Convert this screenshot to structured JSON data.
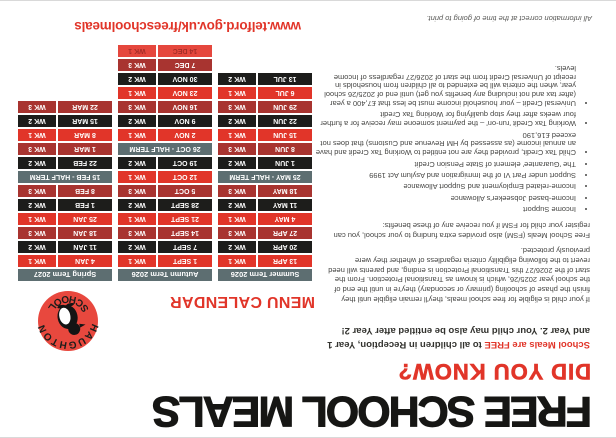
{
  "header": {
    "title": "FREE SCHOOL MEALS",
    "subtitle": "DID YOU KNOW?"
  },
  "intro": {
    "highlight": "School Meals are FREE",
    "rest": "to all children in Reception, Year 1 and Year 2. Your child may also be entitled after Year 2!"
  },
  "paragraphs": [
    "If your child is eligible for free school meals, they'll remain eligible until they finish the phase of schooling (primary or secondary) they're in until the end of the school year 2025/26, which is known as Transitional Protection. From the start of the 2026/27 this Transitional Protection is ending, and parents will need revert to the following eligibility criteria regardless of whether they were previously protected.",
    "Free School Meals (FSM) also provides extra funding to your school, you can register your child for FSM if you receive any of these benefits:"
  ],
  "benefits": [
    "Income Support",
    "Income-based Jobseeker's Allowance",
    "Income-related Employment and Support Allowance",
    "Support under Part VI of the Immigration and Asylum Act 1999",
    "The 'Guarantee' element of State Pension Credit",
    "Child Tax Credit, provided they are not entitled to Working Tax Credit and have an annual income (as assessed by HM Revenue and Customs) that does not exceed £16,190",
    "Working Tax Credit 'run-on' – the payment someone may receive for a further four weeks after they stop qualifying for Working Tax Credit",
    "Universal Credit – your household income must be less that £7,400 a year (after tax and not including any benefits you get) until end of 2025/26 school year, when the criteria will be extended to all children from households in receipt of Universal Credit from the start of 2026/27 regardless of Income levels."
  ],
  "footnote": "All information correct at the time of going to print.",
  "menu_calendar": {
    "title": "MENU CALENDAR",
    "url": "www.telford.gov.uk/freeschoolmeals",
    "logo": {
      "arc_top": "HAUGHTON",
      "arc_bottom": "SCHOOL",
      "icon": "penguin-icon"
    },
    "terms": [
      {
        "name": "Summer Term 2026",
        "rows": [
          {
            "date": "13 APR",
            "week": "WK 1",
            "style": "wk1"
          },
          {
            "date": "20 APR",
            "week": "WK 2",
            "style": "wk2"
          },
          {
            "date": "27 APR",
            "week": "WK 3",
            "style": "wk3"
          },
          {
            "date": "4 MAY",
            "week": "WK 1",
            "style": "wk1"
          },
          {
            "date": "11 MAY",
            "week": "WK 2",
            "style": "wk2"
          },
          {
            "date": "18 MAY",
            "week": "WK 3",
            "style": "wk3"
          },
          {
            "date": "25 MAY - HALF TERM",
            "week": "",
            "style": "half"
          },
          {
            "date": "1 JUN",
            "week": "WK 2",
            "style": "wk2"
          },
          {
            "date": "8 JUN",
            "week": "WK 3",
            "style": "wk3"
          },
          {
            "date": "15 JUN",
            "week": "WK 1",
            "style": "wk1"
          },
          {
            "date": "22 JUN",
            "week": "WK 2",
            "style": "wk2"
          },
          {
            "date": "29 JUN",
            "week": "WK 3",
            "style": "wk3"
          },
          {
            "date": "6 JUL",
            "week": "WK 1",
            "style": "wk1"
          },
          {
            "date": "13 JUL",
            "week": "WK 2",
            "style": "wk2"
          }
        ]
      },
      {
        "name": "Autumn Term 2026",
        "rows": [
          {
            "date": "1 SEPT",
            "week": "WK 1",
            "style": "wk1"
          },
          {
            "date": "7 SEPT",
            "week": "WK 2",
            "style": "wk2"
          },
          {
            "date": "14 SEPT",
            "week": "WK 3",
            "style": "wk3"
          },
          {
            "date": "21 SEPT",
            "week": "WK 1",
            "style": "wk1"
          },
          {
            "date": "28 SEPT",
            "week": "WK 2",
            "style": "wk2"
          },
          {
            "date": "5 OCT",
            "week": "WK 3",
            "style": "wk3"
          },
          {
            "date": "12 OCT",
            "week": "WK 1",
            "style": "wk1"
          },
          {
            "date": "19 OCT",
            "week": "WK 2",
            "style": "wk2"
          },
          {
            "date": "26 OCT - HALF TERM",
            "week": "",
            "style": "half"
          },
          {
            "date": "2 NOV",
            "week": "WK 1",
            "style": "wk1"
          },
          {
            "date": "9 NOV",
            "week": "WK 2",
            "style": "wk2"
          },
          {
            "date": "16 NOV",
            "week": "WK 3",
            "style": "wk3"
          },
          {
            "date": "23 NOV",
            "week": "WK 1",
            "style": "wk1"
          },
          {
            "date": "30 NOV",
            "week": "WK 2",
            "style": "wk2"
          },
          {
            "date": "7 DEC",
            "week": "WK 3",
            "style": "wk3"
          },
          {
            "date": "14 DEC",
            "week": "WK 1",
            "style": "wk1-muted"
          }
        ]
      },
      {
        "name": "Spring Term 2027",
        "rows": [
          {
            "date": "4 JAN",
            "week": "WK 1",
            "style": "wk1"
          },
          {
            "date": "11 JAN",
            "week": "WK 2",
            "style": "wk2"
          },
          {
            "date": "18 JAN",
            "week": "WK 3",
            "style": "wk3"
          },
          {
            "date": "25 JAN",
            "week": "WK 1",
            "style": "wk1"
          },
          {
            "date": "1 FEB",
            "week": "WK 2",
            "style": "wk2"
          },
          {
            "date": "8 FEB",
            "week": "WK 3",
            "style": "wk3"
          },
          {
            "date": "15 FEB - HALF TERM",
            "week": "",
            "style": "half"
          },
          {
            "date": "22 FEB",
            "week": "WK 2",
            "style": "wk2"
          },
          {
            "date": "1 MAR",
            "week": "WK 3",
            "style": "wk3"
          },
          {
            "date": "8 MAR",
            "week": "WK 1",
            "style": "wk1"
          },
          {
            "date": "15 MAR",
            "week": "WK 2",
            "style": "wk2"
          },
          {
            "date": "22 MAR",
            "week": "WK 3",
            "style": "wk3"
          }
        ]
      }
    ]
  },
  "colors": {
    "red": "#e13529",
    "dark_red": "#a83430",
    "black_row": "#1d1d1b",
    "grey_teal": "#5d6e71",
    "logo_red": "#e8483e"
  }
}
